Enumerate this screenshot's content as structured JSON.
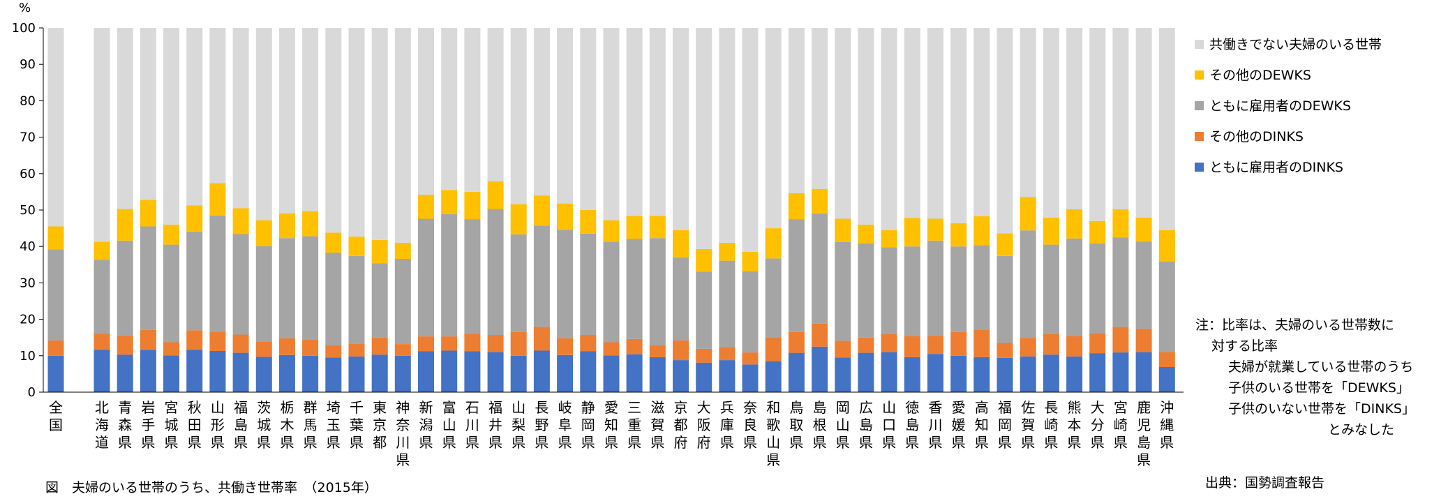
{
  "chart_data": {
    "type": "bar",
    "stacked": true,
    "yunit": "%",
    "ylim": [
      0,
      100
    ],
    "yticks": [
      0,
      10,
      20,
      30,
      40,
      50,
      60,
      70,
      80,
      90,
      100
    ],
    "grid": false,
    "legend_position": "right",
    "categories": [
      "全国",
      "北海道",
      "青森県",
      "岩手県",
      "宮城県",
      "秋田県",
      "山形県",
      "福島県",
      "茨城県",
      "栃木県",
      "群馬県",
      "埼玉県",
      "千葉県",
      "東京都",
      "神奈川県",
      "新潟県",
      "富山県",
      "石川県",
      "福井県",
      "山梨県",
      "長野県",
      "岐阜県",
      "静岡県",
      "愛知県",
      "三重県",
      "滋賀県",
      "京都府",
      "大阪府",
      "兵庫県",
      "奈良県",
      "和歌山県",
      "鳥取県",
      "島根県",
      "岡山県",
      "広島県",
      "山口県",
      "徳島県",
      "香川県",
      "愛媛県",
      "高知県",
      "福岡県",
      "佐賀県",
      "長崎県",
      "熊本県",
      "大分県",
      "宮崎県",
      "鹿児島県",
      "沖縄県"
    ],
    "series": [
      {
        "name": "ともに雇用者のDINKS",
        "color": "#4472c4",
        "values": [
          10.0,
          11.6,
          10.3,
          11.6,
          10.1,
          11.6,
          11.3,
          10.8,
          9.7,
          10.2,
          10.0,
          9.5,
          9.8,
          10.3,
          10.0,
          11.2,
          11.4,
          11.2,
          11.0,
          10.0,
          11.4,
          10.2,
          11.2,
          10.1,
          10.4,
          9.6,
          8.8,
          8.1,
          8.8,
          7.6,
          8.5,
          10.8,
          12.5,
          9.5,
          10.8,
          11.0,
          9.6,
          10.5,
          10.0,
          9.6,
          9.4,
          9.8,
          10.3,
          9.8,
          10.7,
          10.9,
          11.0,
          6.9
        ]
      },
      {
        "name": "その他のDINKS",
        "color": "#ed7d31",
        "values": [
          4.2,
          4.4,
          5.3,
          5.5,
          3.6,
          5.4,
          5.3,
          5.0,
          4.1,
          4.6,
          4.5,
          3.4,
          3.5,
          4.7,
          3.2,
          4.1,
          3.9,
          4.8,
          4.7,
          6.5,
          6.5,
          4.6,
          4.5,
          3.6,
          4.2,
          3.3,
          5.4,
          3.8,
          3.6,
          3.3,
          6.6,
          5.7,
          6.3,
          4.6,
          4.2,
          4.9,
          5.8,
          5.0,
          6.5,
          7.6,
          4.1,
          5.1,
          5.6,
          5.6,
          5.5,
          7.0,
          6.4,
          4.1
        ]
      },
      {
        "name": "ともに雇用者のDEWKS",
        "color": "#a5a5a5",
        "values": [
          25.0,
          20.3,
          26.0,
          28.4,
          26.8,
          27.1,
          31.9,
          27.6,
          26.3,
          27.5,
          28.3,
          25.4,
          24.1,
          20.4,
          23.4,
          32.3,
          33.6,
          31.5,
          34.6,
          26.8,
          27.8,
          29.8,
          27.8,
          27.6,
          27.5,
          29.4,
          22.8,
          21.2,
          23.7,
          22.3,
          21.6,
          31.0,
          30.3,
          27.1,
          25.8,
          23.9,
          24.6,
          26.1,
          23.5,
          23.1,
          23.9,
          29.5,
          24.6,
          26.8,
          24.6,
          24.6,
          23.9,
          24.9
        ]
      },
      {
        "name": "その他のDEWKS",
        "color": "#ffc000",
        "values": [
          6.3,
          5.0,
          8.7,
          7.3,
          5.5,
          7.2,
          8.9,
          7.1,
          7.1,
          6.8,
          6.9,
          5.5,
          5.3,
          6.4,
          4.4,
          6.6,
          6.6,
          7.5,
          7.6,
          8.3,
          8.3,
          7.2,
          6.5,
          5.9,
          6.3,
          6.1,
          7.5,
          6.2,
          4.9,
          5.3,
          8.3,
          7.1,
          6.7,
          6.4,
          5.2,
          4.7,
          7.8,
          6.0,
          6.4,
          8.0,
          6.2,
          9.2,
          7.4,
          8.0,
          6.2,
          7.7,
          6.6,
          8.6
        ]
      },
      {
        "name": "共働きでない夫婦のいる世帯",
        "color": "#d9d9d9",
        "values": [
          54.5,
          58.7,
          49.7,
          47.2,
          54.0,
          48.7,
          42.6,
          49.5,
          52.8,
          50.9,
          50.3,
          56.2,
          57.3,
          58.2,
          59.0,
          45.8,
          44.5,
          45.0,
          42.1,
          48.4,
          46.0,
          48.2,
          50.0,
          52.8,
          51.6,
          51.6,
          55.5,
          60.7,
          59.0,
          61.5,
          55.0,
          45.4,
          44.2,
          52.4,
          54.0,
          55.5,
          52.2,
          52.4,
          53.6,
          51.7,
          56.4,
          46.4,
          52.1,
          49.8,
          53.0,
          49.8,
          52.1,
          55.5
        ]
      }
    ],
    "legend_order": [
      "共働きでない夫婦のいる世帯",
      "その他のDEWKS",
      "ともに雇用者のDEWKS",
      "その他のDINKS",
      "ともに雇用者のDINKS"
    ]
  },
  "note": {
    "line1": "注：比率は、夫婦のいる世帯数に",
    "line2": "対する比率",
    "line3": "夫婦が就業している世帯のうち",
    "line4": "子供のいる世帯を「DEWKS」",
    "line5": "子供のいない世帯を「DINKS」",
    "line6": "とみなした"
  },
  "source": "出典：国勢調査報告",
  "caption": "図　夫婦のいる世帯のうち、共働き世帯率　（2015年）"
}
